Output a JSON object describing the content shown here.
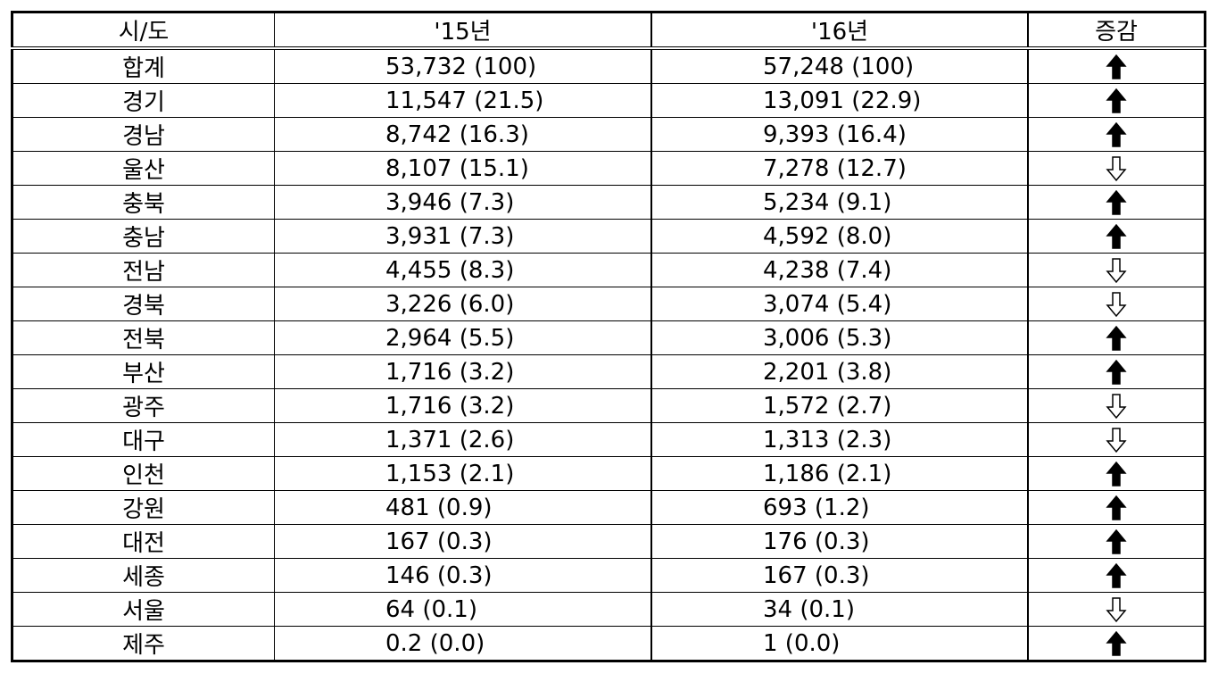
{
  "table": {
    "header": [
      "시/도",
      "'15년",
      "'16년",
      "증감"
    ],
    "rows": [
      {
        "region": "합계",
        "y2015": "53,732 (100)",
        "y2016": "57,248 (100)",
        "change": "up"
      },
      {
        "region": "경기",
        "y2015": "11,547 (21.5)",
        "y2016": "13,091 (22.9)",
        "change": "up"
      },
      {
        "region": "경남",
        "y2015": "8,742 (16.3)",
        "y2016": "9,393 (16.4)",
        "change": "up"
      },
      {
        "region": "울산",
        "y2015": "8,107 (15.1)",
        "y2016": "7,278 (12.7)",
        "change": "down"
      },
      {
        "region": "충북",
        "y2015": "3,946 (7.3)",
        "y2016": "5,234 (9.1)",
        "change": "up"
      },
      {
        "region": "충남",
        "y2015": "3,931 (7.3)",
        "y2016": "4,592 (8.0)",
        "change": "up"
      },
      {
        "region": "전남",
        "y2015": "4,455 (8.3)",
        "y2016": "4,238 (7.4)",
        "change": "down"
      },
      {
        "region": "경북",
        "y2015": "3,226 (6.0)",
        "y2016": "3,074 (5.4)",
        "change": "down"
      },
      {
        "region": "전북",
        "y2015": "2,964 (5.5)",
        "y2016": "3,006 (5.3)",
        "change": "up"
      },
      {
        "region": "부산",
        "y2015": "1,716 (3.2)",
        "y2016": "2,201 (3.8)",
        "change": "up"
      },
      {
        "region": "광주",
        "y2015": "1,716 (3.2)",
        "y2016": "1,572 (2.7)",
        "change": "down"
      },
      {
        "region": "대구",
        "y2015": "1,371 (2.6)",
        "y2016": "1,313 (2.3)",
        "change": "down"
      },
      {
        "region": "인천",
        "y2015": "1,153 (2.1)",
        "y2016": "1,186 (2.1)",
        "change": "up"
      },
      {
        "region": "강원",
        "y2015": "481 (0.9)",
        "y2016": "693 (1.2)",
        "change": "up"
      },
      {
        "region": "대전",
        "y2015": "167 (0.3)",
        "y2016": "176 (0.3)",
        "change": "up"
      },
      {
        "region": "세종",
        "y2015": "146 (0.3)",
        "y2016": "167 (0.3)",
        "change": "up"
      },
      {
        "region": "서울",
        "y2015": "64 (0.1)",
        "y2016": "34 (0.1)",
        "change": "down"
      },
      {
        "region": "제주",
        "y2015": "0.2 (0.0)",
        "y2016": "1 (0.0)",
        "change": "up"
      }
    ]
  }
}
